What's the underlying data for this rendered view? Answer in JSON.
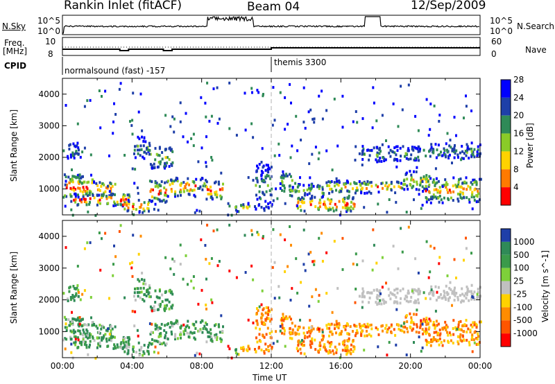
{
  "header": {
    "title": "Rankin Inlet (fitACF)",
    "beam": "Beam 04",
    "date": "12/Sep/2009"
  },
  "labels": {
    "nsky": "N.Sky",
    "nsearch": "N.Search",
    "freq_line1": "Freq.",
    "freq_line2": "[MHz]",
    "nave": "Nave",
    "cpid": "CPID",
    "nsky_ticks": [
      "10^5",
      "10^0"
    ],
    "nsearch_ticks": [
      "10^5",
      "10^0"
    ],
    "freq_ticks": [
      "10",
      "8"
    ],
    "nave_ticks": [
      "60",
      "0"
    ]
  },
  "cpid_segments": [
    {
      "label": "normalsound (fast) -157",
      "start_hour": 0
    },
    {
      "label": "themis 3300",
      "start_hour": 12
    }
  ],
  "chart_data": [
    {
      "type": "heatmap",
      "name": "power-panel",
      "ylabel": "Slant Range [km]",
      "xlabel": "",
      "xlim_hours": [
        0,
        24
      ],
      "ylim": [
        180,
        4500
      ],
      "yticks": [
        1000,
        2000,
        3000,
        4000
      ],
      "colorbar": {
        "label": "Power [dB]",
        "ticks": [
          "4",
          "8",
          "12",
          "16",
          "20",
          "24",
          "28"
        ],
        "colors": [
          "#0000ff",
          "#1e3fa8",
          "#2f8a57",
          "#8acb28",
          "#ffd200",
          "#ff7a00",
          "#ff0000"
        ]
      }
    },
    {
      "type": "heatmap",
      "name": "velocity-panel",
      "ylabel": "Slant Range [km]",
      "xlabel": "Time UT",
      "xlim_hours": [
        0,
        24
      ],
      "ylim": [
        180,
        4500
      ],
      "yticks": [
        1000,
        2000,
        3000,
        4000
      ],
      "xticks": [
        "00:00",
        "04:00",
        "08:00",
        "12:00",
        "16:00",
        "20:00",
        "00:00"
      ],
      "colorbar": {
        "label": "Velocity [m s^-1]",
        "ticks": [
          "1000",
          "500",
          "100",
          "25",
          "-25",
          "-100",
          "-500",
          "-1000"
        ],
        "colors": [
          "#1f3fa8",
          "#2f8a57",
          "#3a9a4a",
          "#7ed03a",
          "#c0c0c0",
          "#ffd200",
          "#ff8c00",
          "#ff5500",
          "#ff0000"
        ]
      }
    }
  ]
}
